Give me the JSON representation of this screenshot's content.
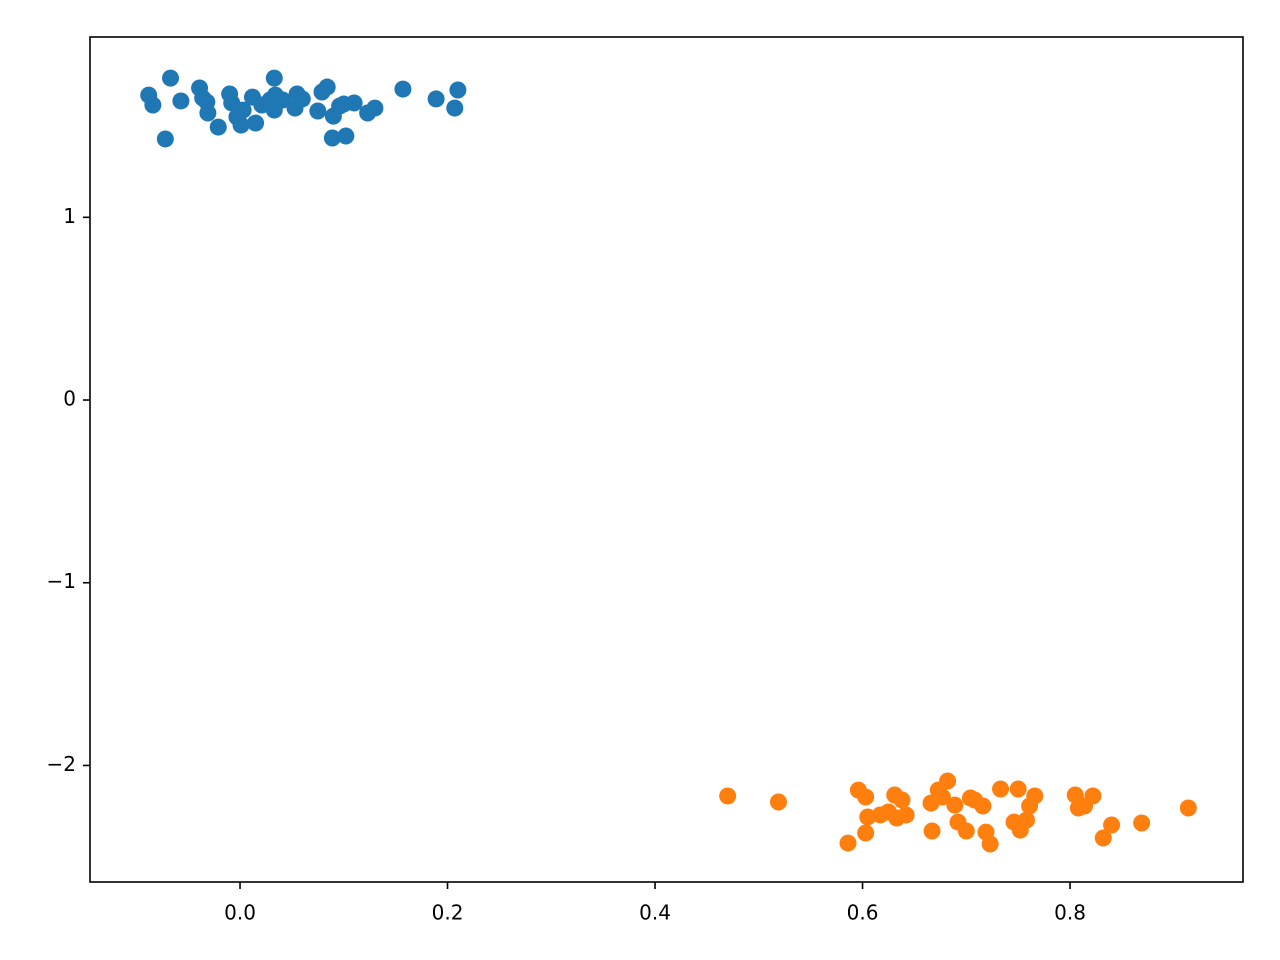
{
  "chart_data": {
    "type": "scatter",
    "xlim": [
      -0.1446,
      0.9667
    ],
    "ylim": [
      -2.638,
      1.987
    ],
    "xticks": [
      {
        "value": 0,
        "label": "0.0"
      },
      0.2,
      0.4,
      0.6,
      0.8
    ],
    "yticks": [
      {
        "value": -2,
        "label": "−2"
      },
      {
        "value": -1,
        "label": "−1"
      },
      0,
      1
    ],
    "grid": false,
    "series": [
      {
        "color": "#1f77b4",
        "x": [
          -0.088,
          -0.084,
          -0.067,
          -0.072,
          -0.057,
          -0.039,
          -0.036,
          -0.032,
          -0.031,
          -0.021,
          -0.01,
          -0.008,
          -0.003,
          0.001,
          0.003,
          0.012,
          0.015,
          0.021,
          0.029,
          0.033,
          0.034,
          0.033,
          0.041,
          0.053,
          0.055,
          0.06,
          0.075,
          0.079,
          0.084,
          0.089,
          0.09,
          0.096,
          0.102,
          0.1,
          0.11,
          0.123,
          0.13,
          0.157,
          0.189,
          0.207,
          0.21
        ],
        "values": [
          1.669,
          1.615,
          1.762,
          1.429,
          1.637,
          1.708,
          1.653,
          1.631,
          1.571,
          1.494,
          1.675,
          1.626,
          1.549,
          1.505,
          1.587,
          1.658,
          1.516,
          1.615,
          1.642,
          1.762,
          1.669,
          1.587,
          1.642,
          1.598,
          1.675,
          1.648,
          1.582,
          1.686,
          1.713,
          1.434,
          1.554,
          1.609,
          1.445,
          1.62,
          1.626,
          1.571,
          1.598,
          1.702,
          1.648,
          1.598,
          1.697
        ]
      },
      {
        "color": "#ff7f0e",
        "x": [
          0.47,
          0.519,
          0.586,
          0.596,
          0.603,
          0.603,
          0.605,
          0.617,
          0.625,
          0.631,
          0.633,
          0.638,
          0.642,
          0.666,
          0.667,
          0.673,
          0.677,
          0.682,
          0.689,
          0.692,
          0.7,
          0.704,
          0.708,
          0.716,
          0.719,
          0.723,
          0.733,
          0.746,
          0.75,
          0.752,
          0.758,
          0.761,
          0.766,
          0.805,
          0.808,
          0.814,
          0.822,
          0.832,
          0.84,
          0.869,
          0.914
        ],
        "values": [
          -2.167,
          -2.2,
          -2.425,
          -2.135,
          -2.173,
          -2.37,
          -2.282,
          -2.271,
          -2.255,
          -2.162,
          -2.288,
          -2.189,
          -2.271,
          -2.206,
          -2.359,
          -2.135,
          -2.173,
          -2.085,
          -2.217,
          -2.31,
          -2.359,
          -2.178,
          -2.189,
          -2.222,
          -2.365,
          -2.43,
          -2.129,
          -2.31,
          -2.129,
          -2.354,
          -2.299,
          -2.222,
          -2.167,
          -2.162,
          -2.233,
          -2.222,
          -2.167,
          -2.397,
          -2.326,
          -2.315,
          -2.233
        ]
      }
    ]
  }
}
